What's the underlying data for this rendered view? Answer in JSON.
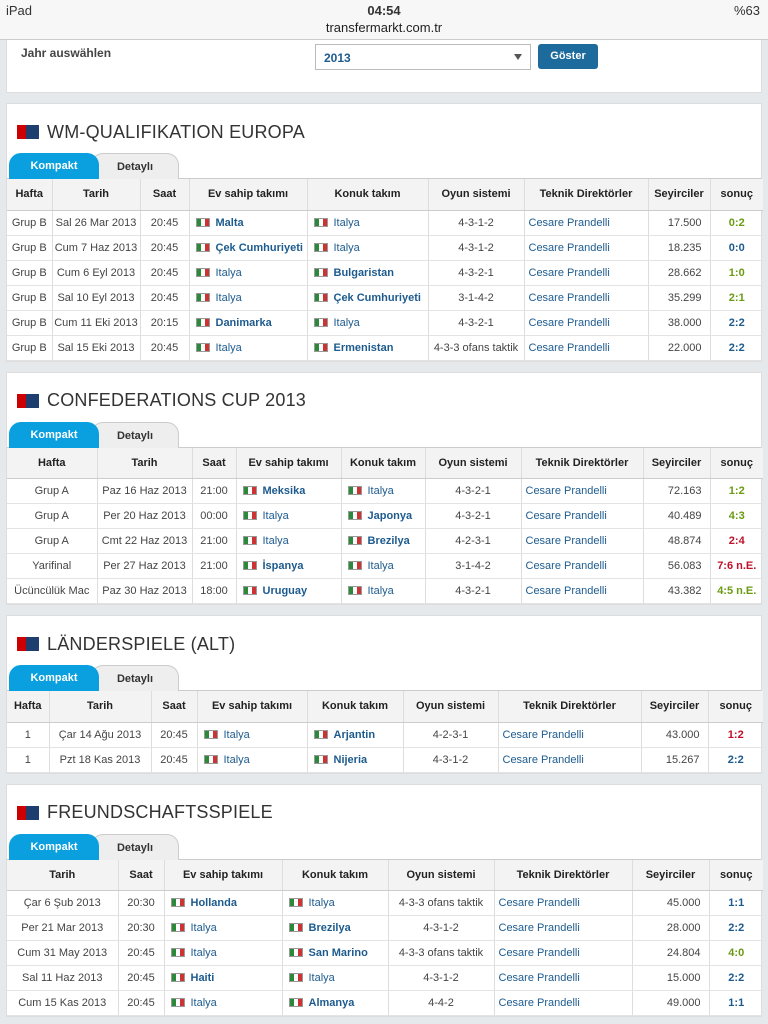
{
  "status": {
    "device": "iPad",
    "time": "04:54",
    "url": "transfermarkt.com.tr",
    "battery": "%63"
  },
  "filter": {
    "label": "Jahr auswählen",
    "year": "2013",
    "button": "Göster"
  },
  "sections": [
    {
      "title": "WM-QUALIFIKATION EUROPA",
      "tabs": [
        "Kompakt",
        "Detaylı"
      ],
      "headers": [
        "Hafta",
        "Tarih",
        "Saat",
        "Ev sahip takımı",
        "Konuk takım",
        "Oyun sistemi",
        "Teknik Direktörler",
        "Seyirciler",
        "sonuç"
      ],
      "rows": [
        [
          "Grup B",
          "Sal 26 Mar 2013",
          "20:45",
          "Malta",
          "Italya",
          "4-3-1-2",
          "Cesare Prandelli",
          "17.500",
          "0:2"
        ],
        [
          "Grup B",
          "Cum 7 Haz 2013",
          "20:45",
          "Çek Cumhuriyeti",
          "Italya",
          "4-3-1-2",
          "Cesare Prandelli",
          "18.235",
          "0:0"
        ],
        [
          "Grup B",
          "Cum 6 Eyl 2013",
          "20:45",
          "Italya",
          "Bulgaristan",
          "4-3-2-1",
          "Cesare Prandelli",
          "28.662",
          "1:0"
        ],
        [
          "Grup B",
          "Sal 10 Eyl 2013",
          "20:45",
          "Italya",
          "Çek Cumhuriyeti",
          "3-1-4-2",
          "Cesare Prandelli",
          "35.299",
          "2:1"
        ],
        [
          "Grup B",
          "Cum 11 Eki 2013",
          "20:15",
          "Danimarka",
          "Italya",
          "4-3-2-1",
          "Cesare Prandelli",
          "38.000",
          "2:2"
        ],
        [
          "Grup B",
          "Sal 15 Eki 2013",
          "20:45",
          "Italya",
          "Ermenistan",
          "4-3-3 ofans taktik",
          "Cesare Prandelli",
          "22.000",
          "2:2"
        ]
      ]
    },
    {
      "title": "CONFEDERATIONS CUP 2013",
      "tabs": [
        "Kompakt",
        "Detaylı"
      ],
      "headers": [
        "Hafta",
        "Tarih",
        "Saat",
        "Ev sahip takımı",
        "Konuk takım",
        "Oyun sistemi",
        "Teknik Direktörler",
        "Seyirciler",
        "sonuç"
      ],
      "rows": [
        [
          "Grup A",
          "Paz 16 Haz 2013",
          "21:00",
          "Meksika",
          "Italya",
          "4-3-2-1",
          "Cesare Prandelli",
          "72.163",
          "1:2"
        ],
        [
          "Grup A",
          "Per 20 Haz 2013",
          "00:00",
          "Italya",
          "Japonya",
          "4-3-2-1",
          "Cesare Prandelli",
          "40.489",
          "4:3"
        ],
        [
          "Grup A",
          "Cmt 22 Haz 2013",
          "21:00",
          "Italya",
          "Brezilya",
          "4-2-3-1",
          "Cesare Prandelli",
          "48.874",
          "2:4"
        ],
        [
          "Yarifinal",
          "Per 27 Haz 2013",
          "21:00",
          "İspanya",
          "Italya",
          "3-1-4-2",
          "Cesare Prandelli",
          "56.083",
          "7:6 n.E."
        ],
        [
          "Ücüncülük Mac",
          "Paz 30 Haz 2013",
          "18:00",
          "Uruguay",
          "Italya",
          "4-3-2-1",
          "Cesare Prandelli",
          "43.382",
          "4:5 n.E."
        ]
      ]
    },
    {
      "title": "LÄNDERSPIELE (ALT)",
      "tabs": [
        "Kompakt",
        "Detaylı"
      ],
      "headers": [
        "Hafta",
        "Tarih",
        "Saat",
        "Ev sahip takımı",
        "Konuk takım",
        "Oyun sistemi",
        "Teknik Direktörler",
        "Seyirciler",
        "sonuç"
      ],
      "rows": [
        [
          "1",
          "Çar 14 Ağu 2013",
          "20:45",
          "Italya",
          "Arjantin",
          "4-2-3-1",
          "Cesare Prandelli",
          "43.000",
          "1:2"
        ],
        [
          "1",
          "Pzt 18 Kas 2013",
          "20:45",
          "Italya",
          "Nijeria",
          "4-3-1-2",
          "Cesare Prandelli",
          "15.267",
          "2:2"
        ]
      ]
    },
    {
      "title": "FREUNDSCHAFTSSPIELE",
      "tabs": [
        "Kompakt",
        "Detaylı"
      ],
      "headers": [
        "Tarih",
        "Saat",
        "Ev sahip takımı",
        "Konuk takım",
        "Oyun sistemi",
        "Teknik Direktörler",
        "Seyirciler",
        "sonuç"
      ],
      "rows": [
        [
          "Çar 6 Şub 2013",
          "20:30",
          "Hollanda",
          "Italya",
          "4-3-3 ofans taktik",
          "Cesare Prandelli",
          "45.000",
          "1:1"
        ],
        [
          "Per 21 Mar 2013",
          "20:30",
          "Italya",
          "Brezilya",
          "4-3-1-2",
          "Cesare Prandelli",
          "28.000",
          "2:2"
        ],
        [
          "Cum 31 May 2013",
          "20:45",
          "Italya",
          "San Marino",
          "4-3-3 ofans taktik",
          "Cesare Prandelli",
          "24.804",
          "4:0"
        ],
        [
          "Sal 11 Haz 2013",
          "20:45",
          "Haiti",
          "Italya",
          "4-3-1-2",
          "Cesare Prandelli",
          "15.000",
          "2:2"
        ],
        [
          "Cum 15 Kas 2013",
          "20:45",
          "Italya",
          "Almanya",
          "4-4-2",
          "Cesare Prandelli",
          "49.000",
          "1:1"
        ]
      ]
    }
  ]
}
